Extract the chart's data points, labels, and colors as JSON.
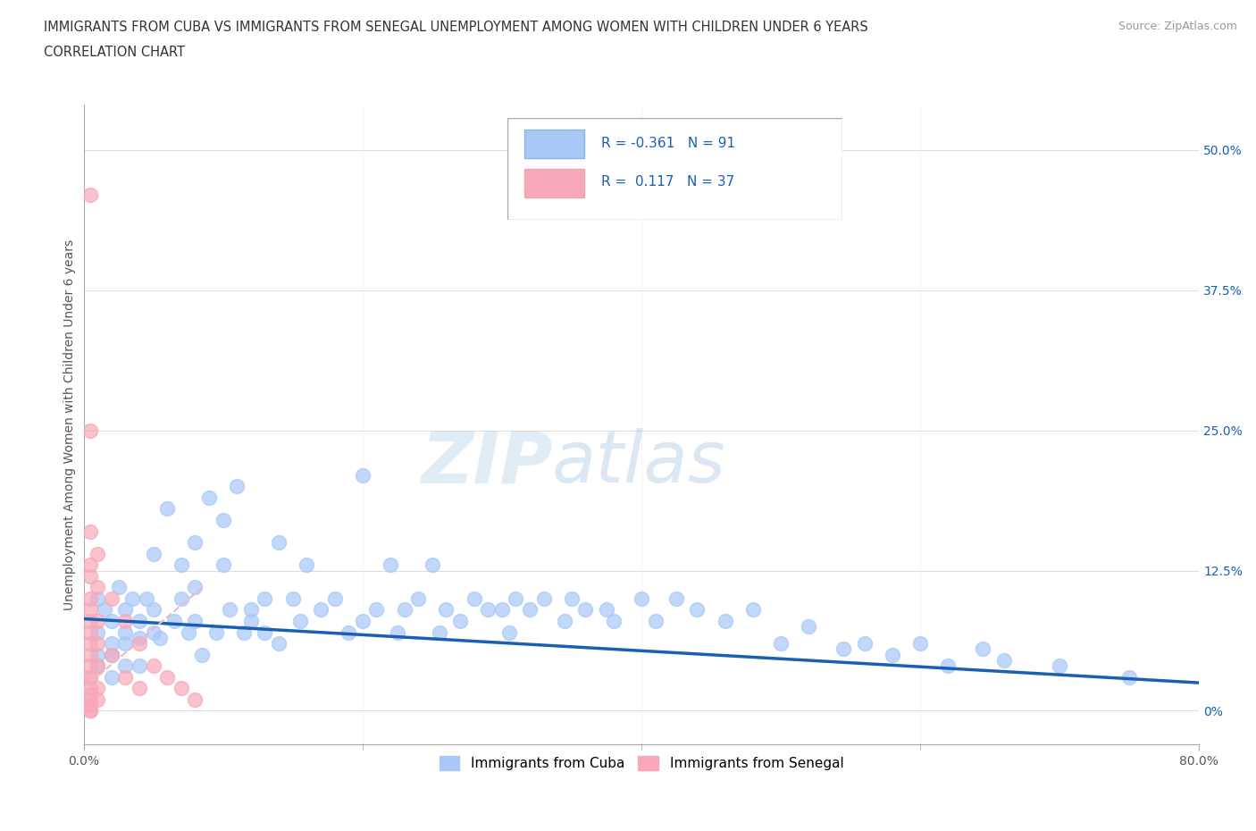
{
  "title_line1": "IMMIGRANTS FROM CUBA VS IMMIGRANTS FROM SENEGAL UNEMPLOYMENT AMONG WOMEN WITH CHILDREN UNDER 6 YEARS",
  "title_line2": "CORRELATION CHART",
  "source": "Source: ZipAtlas.com",
  "ylabel": "Unemployment Among Women with Children Under 6 years",
  "xlim": [
    0.0,
    0.8
  ],
  "ylim": [
    -0.03,
    0.54
  ],
  "xtick_positions": [
    0.0,
    0.8
  ],
  "xtick_labels": [
    "0.0%",
    "80.0%"
  ],
  "xtick_minor_positions": [
    0.2,
    0.4,
    0.6
  ],
  "yticks_right": [
    0.0,
    0.125,
    0.25,
    0.375,
    0.5
  ],
  "ytick_labels_right": [
    "0%",
    "12.5%",
    "25.0%",
    "37.5%",
    "50.0%"
  ],
  "cuba_color": "#a8c8f8",
  "senegal_color": "#f8a8b8",
  "cuba_line_color": "#1a5fb4",
  "senegal_line_color": "#e8b8c8",
  "legend_cuba_label": "Immigrants from Cuba",
  "legend_senegal_label": "Immigrants from Senegal",
  "R_cuba": -0.361,
  "N_cuba": 91,
  "R_senegal": 0.117,
  "N_senegal": 37,
  "watermark_zip": "ZIP",
  "watermark_atlas": "atlas",
  "cuba_x": [
    0.01,
    0.01,
    0.01,
    0.01,
    0.015,
    0.02,
    0.02,
    0.02,
    0.02,
    0.025,
    0.03,
    0.03,
    0.03,
    0.03,
    0.035,
    0.04,
    0.04,
    0.04,
    0.045,
    0.05,
    0.05,
    0.05,
    0.055,
    0.06,
    0.065,
    0.07,
    0.07,
    0.075,
    0.08,
    0.08,
    0.08,
    0.085,
    0.09,
    0.095,
    0.1,
    0.1,
    0.105,
    0.11,
    0.115,
    0.12,
    0.12,
    0.13,
    0.13,
    0.14,
    0.14,
    0.15,
    0.155,
    0.16,
    0.17,
    0.18,
    0.19,
    0.2,
    0.2,
    0.21,
    0.22,
    0.225,
    0.23,
    0.24,
    0.25,
    0.255,
    0.26,
    0.27,
    0.28,
    0.29,
    0.3,
    0.305,
    0.31,
    0.32,
    0.33,
    0.345,
    0.35,
    0.36,
    0.375,
    0.38,
    0.4,
    0.41,
    0.425,
    0.44,
    0.46,
    0.48,
    0.5,
    0.52,
    0.545,
    0.56,
    0.58,
    0.6,
    0.62,
    0.645,
    0.66,
    0.7,
    0.75
  ],
  "cuba_y": [
    0.07,
    0.05,
    0.04,
    0.1,
    0.09,
    0.08,
    0.06,
    0.05,
    0.03,
    0.11,
    0.09,
    0.07,
    0.06,
    0.04,
    0.1,
    0.08,
    0.065,
    0.04,
    0.1,
    0.14,
    0.09,
    0.07,
    0.065,
    0.18,
    0.08,
    0.13,
    0.1,
    0.07,
    0.15,
    0.11,
    0.08,
    0.05,
    0.19,
    0.07,
    0.17,
    0.13,
    0.09,
    0.2,
    0.07,
    0.09,
    0.08,
    0.1,
    0.07,
    0.15,
    0.06,
    0.1,
    0.08,
    0.13,
    0.09,
    0.1,
    0.07,
    0.21,
    0.08,
    0.09,
    0.13,
    0.07,
    0.09,
    0.1,
    0.13,
    0.07,
    0.09,
    0.08,
    0.1,
    0.09,
    0.09,
    0.07,
    0.1,
    0.09,
    0.1,
    0.08,
    0.1,
    0.09,
    0.09,
    0.08,
    0.1,
    0.08,
    0.1,
    0.09,
    0.08,
    0.09,
    0.06,
    0.075,
    0.055,
    0.06,
    0.05,
    0.06,
    0.04,
    0.055,
    0.045,
    0.04,
    0.03
  ],
  "senegal_x": [
    0.005,
    0.005,
    0.005,
    0.005,
    0.005,
    0.005,
    0.005,
    0.005,
    0.005,
    0.005,
    0.005,
    0.005,
    0.005,
    0.005,
    0.005,
    0.005,
    0.005,
    0.005,
    0.005,
    0.005,
    0.01,
    0.01,
    0.01,
    0.01,
    0.01,
    0.01,
    0.01,
    0.02,
    0.02,
    0.03,
    0.03,
    0.04,
    0.04,
    0.05,
    0.06,
    0.07,
    0.08
  ],
  "senegal_y": [
    0.46,
    0.25,
    0.16,
    0.13,
    0.12,
    0.1,
    0.09,
    0.08,
    0.07,
    0.06,
    0.05,
    0.04,
    0.03,
    0.03,
    0.02,
    0.015,
    0.01,
    0.005,
    0.0,
    0.0,
    0.14,
    0.11,
    0.08,
    0.06,
    0.04,
    0.02,
    0.01,
    0.1,
    0.05,
    0.08,
    0.03,
    0.06,
    0.02,
    0.04,
    0.03,
    0.02,
    0.01
  ],
  "cuba_trend_x": [
    0.0,
    0.8
  ],
  "cuba_trend_y": [
    0.082,
    0.025
  ],
  "senegal_trend_x": [
    0.0,
    0.085
  ],
  "senegal_trend_y": [
    0.02,
    0.11
  ]
}
